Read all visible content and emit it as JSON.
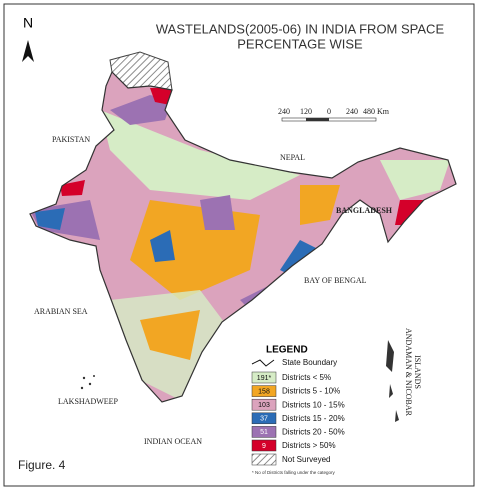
{
  "north": "N",
  "title": [
    "WASTELANDS(2005-06) IN INDIA FROM SPACE",
    "PERCENTAGE WISE"
  ],
  "scale": [
    "240",
    "120",
    "0",
    "240",
    "480 Km"
  ],
  "labels": {
    "pakistan": "PAKISTAN",
    "nepal": "NEPAL",
    "bangladesh": "BANGLADESH",
    "bay_of_bengal": "BAY OF BENGAL",
    "arabian_sea": "ARABIAN SEA",
    "lakshadweep": "LAKSHADWEEP",
    "indian_ocean": "INDIAN OCEAN",
    "andaman": [
      "ANDAMAN & NICOBAR",
      "ISLANDS"
    ]
  },
  "legend": {
    "title": "LEGEND",
    "state_boundary": "State Boundary",
    "items": [
      {
        "count": "191*",
        "label": "Districts  < 5%",
        "color": "#d6ecc6"
      },
      {
        "count": 158,
        "label": "Districts  5 - 10%",
        "color": "#f2a623"
      },
      {
        "count": 103,
        "label": "Districts  10 - 15%",
        "color": "#dba3bd"
      },
      {
        "count": 37,
        "label": "Districts  15 - 20%",
        "color": "#2b6cb6"
      },
      {
        "count": 51,
        "label": "Districts  20 - 50%",
        "color": "#9c72b2"
      },
      {
        "count": 9,
        "label": "Districts  > 50%",
        "color": "#d4002a"
      }
    ],
    "not_surveyed": "Not Surveyed",
    "footnote": "* No of Districts falling under the category"
  },
  "caption": "Figure. 4"
}
